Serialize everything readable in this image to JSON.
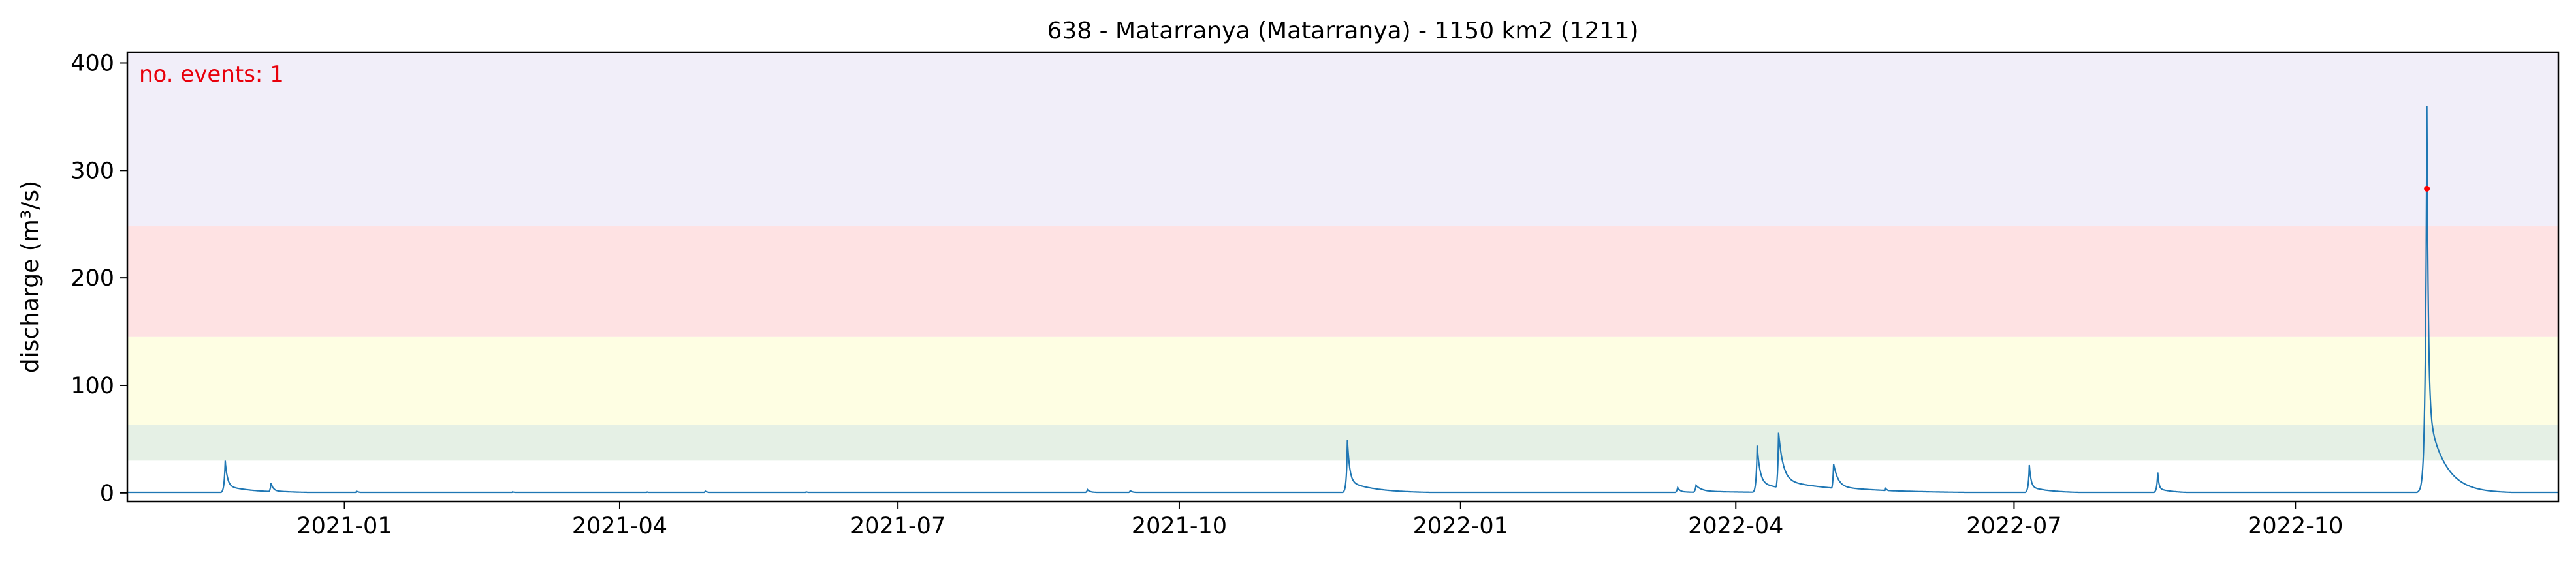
{
  "chart_data": {
    "type": "line",
    "title": "638 - Matarranya (Matarranya) - 1150 km2 (1211)",
    "xlabel": "",
    "ylabel": "discharge (m³/s)",
    "x_range": [
      "2020-10-22",
      "2022-12-26"
    ],
    "ylim": [
      -8,
      410
    ],
    "x_ticks": [
      {
        "date": "2021-01-01",
        "label": "2021-01"
      },
      {
        "date": "2021-04-01",
        "label": "2021-04"
      },
      {
        "date": "2021-07-01",
        "label": "2021-07"
      },
      {
        "date": "2021-10-01",
        "label": "2021-10"
      },
      {
        "date": "2022-01-01",
        "label": "2022-01"
      },
      {
        "date": "2022-04-01",
        "label": "2022-04"
      },
      {
        "date": "2022-07-01",
        "label": "2022-07"
      },
      {
        "date": "2022-10-01",
        "label": "2022-10"
      }
    ],
    "y_ticks": [
      0,
      100,
      200,
      300,
      400
    ],
    "grid": false,
    "threshold_bands": [
      {
        "from": 30,
        "to": 63,
        "color": "#e5f0e5"
      },
      {
        "from": 63,
        "to": 145,
        "color": "#fefee3"
      },
      {
        "from": 145,
        "to": 248,
        "color": "#fee2e3"
      },
      {
        "from": 248,
        "to": 410,
        "color": "#f1eef9"
      }
    ],
    "series": [
      {
        "color": "#1f77b4",
        "baseflow": 0.5,
        "peaks": [
          {
            "date": "2020-11-23",
            "value": 30,
            "rise": 1,
            "decay": 4
          },
          {
            "date": "2020-12-08",
            "value": 9,
            "rise": 1,
            "decay": 4
          },
          {
            "date": "2021-01-05",
            "value": 1.5,
            "rise": 1,
            "decay": 4
          },
          {
            "date": "2021-02-25",
            "value": 1,
            "rise": 1,
            "decay": 4
          },
          {
            "date": "2021-04-10",
            "value": 0.8,
            "rise": 1,
            "decay": 4
          },
          {
            "date": "2021-04-29",
            "value": 1.5,
            "rise": 1,
            "decay": 4
          },
          {
            "date": "2021-06-01",
            "value": 1,
            "rise": 1,
            "decay": 4
          },
          {
            "date": "2021-09-01",
            "value": 3,
            "rise": 1,
            "decay": 4
          },
          {
            "date": "2021-09-15",
            "value": 2,
            "rise": 1,
            "decay": 4
          },
          {
            "date": "2021-11-25",
            "value": 49,
            "rise": 1,
            "decay": 4
          },
          {
            "date": "2022-03-13",
            "value": 5,
            "rise": 1,
            "decay": 4
          },
          {
            "date": "2022-03-19",
            "value": 7,
            "rise": 1,
            "decay": 10
          },
          {
            "date": "2022-04-08",
            "value": 44,
            "rise": 1,
            "decay": 5
          },
          {
            "date": "2022-04-15",
            "value": 56,
            "rise": 1,
            "decay": 8
          },
          {
            "date": "2022-05-03",
            "value": 27,
            "rise": 1,
            "decay": 8
          },
          {
            "date": "2022-05-20",
            "value": 4,
            "rise": 1,
            "decay": 6
          },
          {
            "date": "2022-07-06",
            "value": 26,
            "rise": 1,
            "decay": 3
          },
          {
            "date": "2022-08-17",
            "value": 19,
            "rise": 1,
            "decay": 2
          },
          {
            "date": "2022-11-13",
            "value": 360,
            "rise": 1.5,
            "decay": 2.5
          }
        ]
      }
    ],
    "events": [
      {
        "date": "2022-11-13",
        "value": 283,
        "color": "#ff0000"
      }
    ],
    "annotation": {
      "text": "no. events: 1",
      "color": "#e8000b",
      "position": "top-left"
    }
  }
}
